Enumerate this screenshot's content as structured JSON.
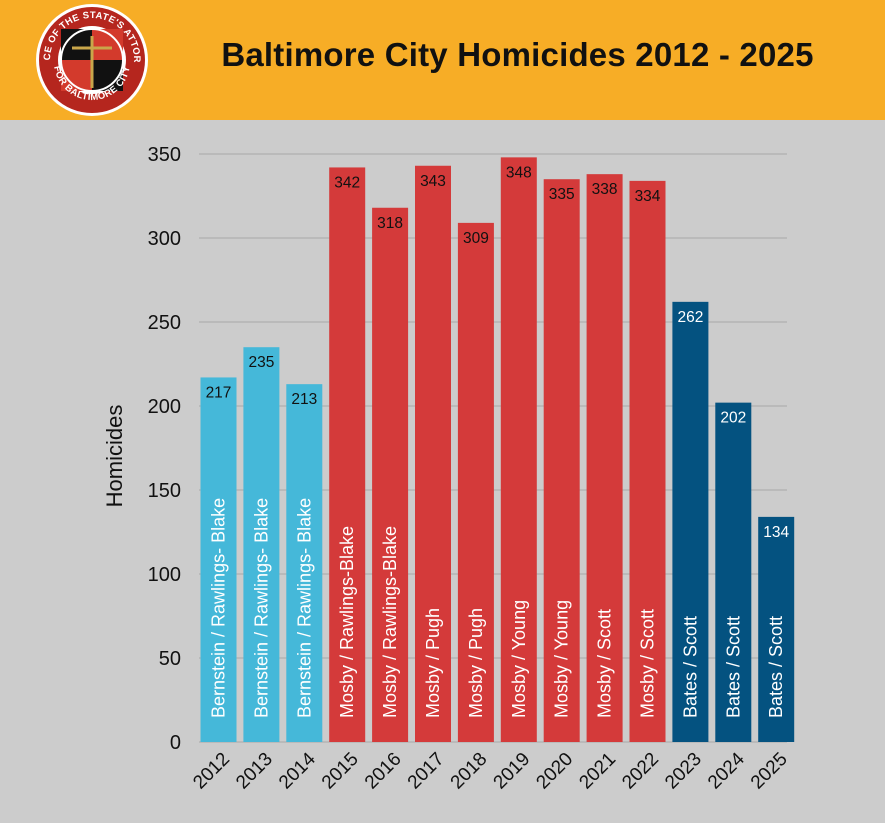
{
  "header": {
    "title": "Baltimore City Homicides 2012 - 2025",
    "seal_text": "OFFICE OF THE STATE'S ATTORNEY • FOR BALTIMORE CITY •"
  },
  "colors": {
    "header_bg": "#f7ad26",
    "page_bg": "#cccccc",
    "bernstein": "#45b8d9",
    "mosby": "#d43a3a",
    "bates": "#045280"
  },
  "chart_data": {
    "type": "bar",
    "title": "Baltimore City Homicides 2012 - 2025",
    "xlabel": "",
    "ylabel": "Homicides",
    "ylim": [
      0,
      350
    ],
    "yticks": [
      0,
      50,
      100,
      150,
      200,
      250,
      300,
      350
    ],
    "grid": true,
    "categories": [
      "2012",
      "2013",
      "2014",
      "2015",
      "2016",
      "2017",
      "2018",
      "2019",
      "2020",
      "2021",
      "2022",
      "2023",
      "2024",
      "2025"
    ],
    "values": [
      217,
      235,
      213,
      342,
      318,
      343,
      309,
      348,
      335,
      338,
      334,
      262,
      202,
      134
    ],
    "bar_labels": [
      "Bernstein / Rawlings- Blake",
      "Bernstein / Rawlings- Blake",
      "Bernstein / Rawlings- Blake",
      "Mosby / Rawlings-Blake",
      "Mosby / Rawlings-Blake",
      "Mosby / Pugh",
      "Mosby / Pugh",
      "Mosby / Young",
      "Mosby / Young",
      "Mosby / Scott",
      "Mosby / Scott",
      "Bates / Scott",
      "Bates / Scott",
      "Bates / Scott"
    ],
    "bar_groups": [
      "bernstein",
      "bernstein",
      "bernstein",
      "mosby",
      "mosby",
      "mosby",
      "mosby",
      "mosby",
      "mosby",
      "mosby",
      "mosby",
      "bates",
      "bates",
      "bates"
    ]
  }
}
